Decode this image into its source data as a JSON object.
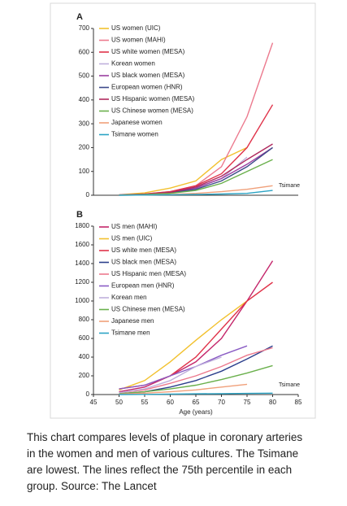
{
  "chart_data": [
    {
      "type": "line",
      "panel_label": "A",
      "xlim": [
        45,
        85
      ],
      "ylim": [
        0,
        700
      ],
      "yticks": [
        0,
        100,
        200,
        300,
        400,
        500,
        600,
        700
      ],
      "x": [
        50,
        55,
        60,
        65,
        70,
        75,
        80
      ],
      "annotation": "Tsimane",
      "series": [
        {
          "name": "US women (UIC)",
          "color": "#f2c12e",
          "values": [
            2,
            10,
            30,
            60,
            150,
            200,
            null
          ]
        },
        {
          "name": "US women (MAHI)",
          "color": "#ec7a8e",
          "values": [
            2,
            5,
            15,
            40,
            120,
            330,
            640
          ]
        },
        {
          "name": "US white women (MESA)",
          "color": "#e0334a",
          "values": [
            1,
            5,
            15,
            40,
            90,
            200,
            380
          ]
        },
        {
          "name": "Korean women",
          "color": "#bfb0dc",
          "values": [
            1,
            3,
            10,
            30,
            70,
            160,
            null
          ]
        },
        {
          "name": "US black women (MESA)",
          "color": "#9a3fa0",
          "values": [
            1,
            4,
            12,
            30,
            70,
            130,
            200
          ]
        },
        {
          "name": "European women (HNR)",
          "color": "#3d4a8a",
          "values": [
            1,
            3,
            10,
            25,
            60,
            120,
            200
          ]
        },
        {
          "name": "US Hispanic women (MESA)",
          "color": "#b02a5e",
          "values": [
            1,
            4,
            12,
            35,
            80,
            150,
            215
          ]
        },
        {
          "name": "US Chinese women (MESA)",
          "color": "#6ab04c",
          "values": [
            1,
            3,
            8,
            20,
            50,
            100,
            150
          ]
        },
        {
          "name": "Japanese women",
          "color": "#f0a07a",
          "values": [
            0,
            1,
            3,
            8,
            15,
            25,
            40
          ]
        },
        {
          "name": "Tsimane women",
          "color": "#2aa3c4",
          "values": [
            0,
            1,
            2,
            3,
            5,
            8,
            20
          ]
        }
      ]
    },
    {
      "type": "line",
      "panel_label": "B",
      "xlim": [
        45,
        85
      ],
      "xticks": [
        45,
        50,
        55,
        60,
        65,
        70,
        75,
        80,
        85
      ],
      "xlabel": "Age (years)",
      "ylim": [
        0,
        1800
      ],
      "yticks": [
        0,
        200,
        400,
        600,
        800,
        1000,
        1200,
        1400,
        1600,
        1800
      ],
      "x": [
        50,
        55,
        60,
        65,
        70,
        75,
        80
      ],
      "annotation": "Tsimane",
      "series": [
        {
          "name": "US men (MAHI)",
          "color": "#c4266b",
          "values": [
            30,
            80,
            200,
            350,
            600,
            1000,
            1430
          ]
        },
        {
          "name": "US men (UIC)",
          "color": "#f2c12e",
          "values": [
            50,
            150,
            350,
            580,
            800,
            1000,
            null
          ]
        },
        {
          "name": "US white men (MESA)",
          "color": "#e0334a",
          "values": [
            60,
            100,
            200,
            400,
            700,
            1000,
            1200
          ]
        },
        {
          "name": "US black men (MESA)",
          "color": "#2c3f8c",
          "values": [
            10,
            30,
            80,
            150,
            250,
            380,
            520
          ]
        },
        {
          "name": "US Hispanic men (MESA)",
          "color": "#ec7a8e",
          "values": [
            20,
            50,
            120,
            200,
            300,
            420,
            500
          ]
        },
        {
          "name": "European men (HNR)",
          "color": "#8a5cc4",
          "values": [
            60,
            100,
            200,
            300,
            420,
            520,
            null
          ]
        },
        {
          "name": "Korean men",
          "color": "#bfb0dc",
          "values": [
            20,
            60,
            150,
            300,
            400,
            null,
            null
          ]
        },
        {
          "name": "US Chinese men (MESA)",
          "color": "#6ab04c",
          "values": [
            10,
            30,
            60,
            100,
            160,
            230,
            310
          ]
        },
        {
          "name": "Japanese men",
          "color": "#f0a07a",
          "values": [
            5,
            15,
            30,
            50,
            80,
            110,
            null
          ]
        },
        {
          "name": "Tsimane men",
          "color": "#2aa3c4",
          "values": [
            0,
            2,
            5,
            8,
            10,
            12,
            15
          ]
        }
      ]
    }
  ],
  "caption": [
    "This chart compares levels of plaque in coronary arteries",
    "in the women and men of various cultures. The Tsimane",
    "are lowest. The lines reflect the 75th percentile in each",
    "group. Source: The Lancet"
  ]
}
